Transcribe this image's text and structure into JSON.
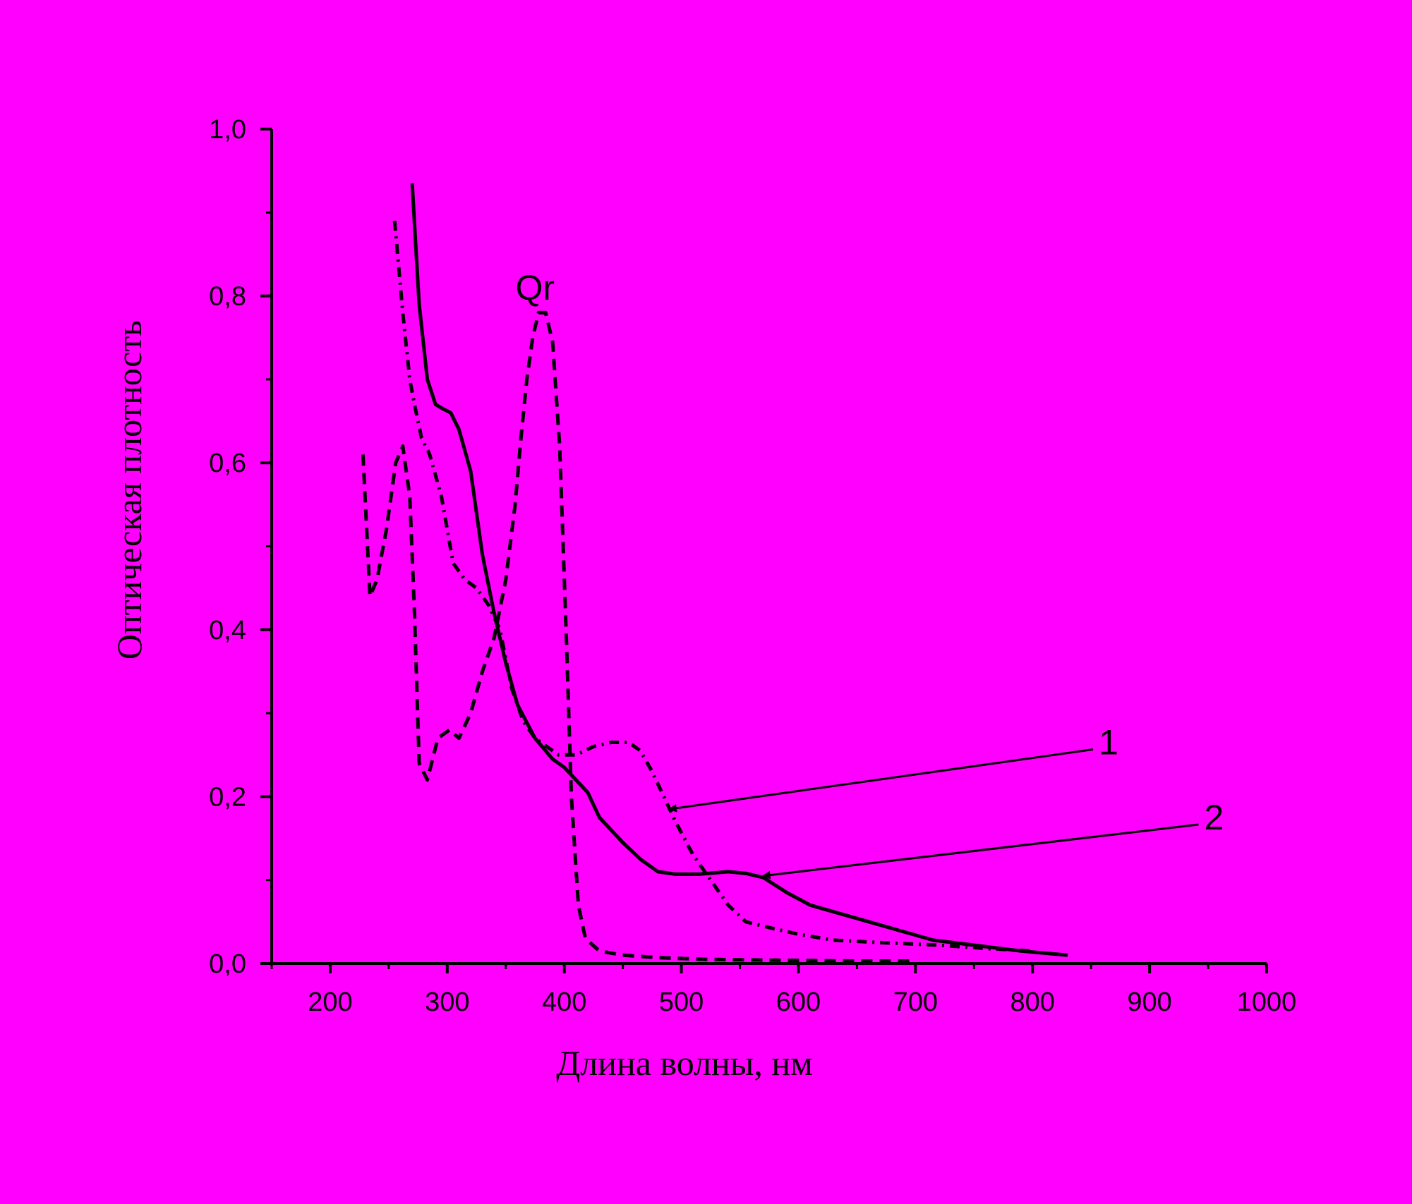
{
  "chart_data": {
    "type": "line",
    "xlabel": "Длина волны, нм",
    "ylabel": "Оптическая плотность",
    "xlim": [
      150,
      1000
    ],
    "ylim": [
      0,
      1.0
    ],
    "x_ticks": [
      200,
      300,
      400,
      500,
      600,
      700,
      800,
      900,
      1000
    ],
    "x_tick_labels": [
      "200",
      "300",
      "400",
      "500",
      "600",
      "700",
      "800",
      "900",
      "1000"
    ],
    "y_ticks": [
      0,
      0.2,
      0.4,
      0.6,
      0.8,
      1.0
    ],
    "y_tick_labels": [
      "0,0",
      "0,2",
      "0,4",
      "0,6",
      "0,8",
      "1,0"
    ],
    "grid": false,
    "colors": {
      "background": "#ff00ff",
      "ink": "#000000"
    },
    "series": [
      {
        "style": "solid",
        "points": [
          [
            270,
            0.935
          ],
          [
            276,
            0.79
          ],
          [
            283,
            0.7
          ],
          [
            290,
            0.67
          ],
          [
            296,
            0.665
          ],
          [
            303,
            0.66
          ],
          [
            310,
            0.64
          ],
          [
            320,
            0.59
          ],
          [
            330,
            0.49
          ],
          [
            340,
            0.42
          ],
          [
            350,
            0.36
          ],
          [
            360,
            0.31
          ],
          [
            375,
            0.27
          ],
          [
            390,
            0.245
          ],
          [
            400,
            0.235
          ],
          [
            420,
            0.205
          ],
          [
            430,
            0.175
          ],
          [
            450,
            0.145
          ],
          [
            465,
            0.125
          ],
          [
            480,
            0.11
          ],
          [
            495,
            0.107
          ],
          [
            515,
            0.107
          ],
          [
            540,
            0.11
          ],
          [
            555,
            0.108
          ],
          [
            570,
            0.103
          ],
          [
            590,
            0.085
          ],
          [
            610,
            0.07
          ],
          [
            630,
            0.062
          ],
          [
            660,
            0.05
          ],
          [
            690,
            0.038
          ],
          [
            715,
            0.028
          ],
          [
            750,
            0.022
          ],
          [
            790,
            0.015
          ],
          [
            830,
            0.01
          ]
        ]
      },
      {
        "style": "dash-dot",
        "points": [
          [
            255,
            0.89
          ],
          [
            262,
            0.78
          ],
          [
            268,
            0.7
          ],
          [
            272,
            0.67
          ],
          [
            278,
            0.63
          ],
          [
            285,
            0.61
          ],
          [
            295,
            0.56
          ],
          [
            305,
            0.48
          ],
          [
            315,
            0.46
          ],
          [
            325,
            0.45
          ],
          [
            335,
            0.43
          ],
          [
            345,
            0.4
          ],
          [
            355,
            0.33
          ],
          [
            365,
            0.29
          ],
          [
            375,
            0.27
          ],
          [
            385,
            0.26
          ],
          [
            395,
            0.25
          ],
          [
            410,
            0.25
          ],
          [
            425,
            0.26
          ],
          [
            440,
            0.265
          ],
          [
            455,
            0.265
          ],
          [
            465,
            0.255
          ],
          [
            475,
            0.23
          ],
          [
            485,
            0.2
          ],
          [
            495,
            0.17
          ],
          [
            510,
            0.13
          ],
          [
            525,
            0.1
          ],
          [
            540,
            0.07
          ],
          [
            555,
            0.05
          ],
          [
            575,
            0.043
          ],
          [
            600,
            0.035
          ],
          [
            630,
            0.028
          ],
          [
            670,
            0.025
          ],
          [
            720,
            0.022
          ],
          [
            760,
            0.018
          ],
          [
            800,
            0.015
          ]
        ]
      },
      {
        "style": "dashed",
        "points": [
          [
            228,
            0.61
          ],
          [
            234,
            0.44
          ],
          [
            240,
            0.46
          ],
          [
            248,
            0.52
          ],
          [
            256,
            0.6
          ],
          [
            262,
            0.62
          ],
          [
            268,
            0.56
          ],
          [
            272,
            0.42
          ],
          [
            276,
            0.24
          ],
          [
            283,
            0.22
          ],
          [
            292,
            0.27
          ],
          [
            302,
            0.28
          ],
          [
            310,
            0.27
          ],
          [
            320,
            0.3
          ],
          [
            330,
            0.35
          ],
          [
            340,
            0.39
          ],
          [
            350,
            0.46
          ],
          [
            358,
            0.55
          ],
          [
            363,
            0.63
          ],
          [
            368,
            0.7
          ],
          [
            373,
            0.75
          ],
          [
            378,
            0.78
          ],
          [
            384,
            0.78
          ],
          [
            390,
            0.745
          ],
          [
            396,
            0.62
          ],
          [
            402,
            0.38
          ],
          [
            406,
            0.2
          ],
          [
            412,
            0.07
          ],
          [
            418,
            0.03
          ],
          [
            430,
            0.015
          ],
          [
            450,
            0.01
          ],
          [
            480,
            0.007
          ],
          [
            520,
            0.005
          ],
          [
            580,
            0.004
          ],
          [
            650,
            0.003
          ],
          [
            700,
            0.003
          ]
        ]
      }
    ],
    "annotations": [
      {
        "text": "Qr",
        "x": 375,
        "y": 0.81
      },
      {
        "text": "1",
        "x": 865,
        "y": 0.265,
        "arrow_to": [
          490,
          0.185
        ]
      },
      {
        "text": "2",
        "x": 955,
        "y": 0.175,
        "arrow_to": [
          570,
          0.105
        ]
      }
    ]
  }
}
